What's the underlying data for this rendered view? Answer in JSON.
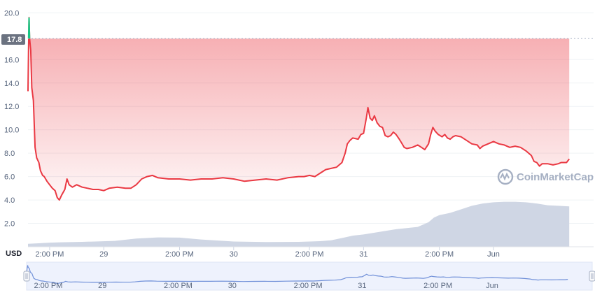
{
  "chart_data": {
    "type": "line",
    "currency_label": "USD",
    "watermark": "CoinMarketCap",
    "current_price_badge": "17.8",
    "y_ticks": [
      "2.0",
      "4.0",
      "6.0",
      "8.0",
      "10.0",
      "12.0",
      "14.0",
      "16.0",
      "20.0"
    ],
    "y_tick_values": [
      2,
      4,
      6,
      8,
      10,
      12,
      14,
      16,
      20
    ],
    "ylim": [
      0,
      20.5
    ],
    "reference_price": 17.8,
    "x_ticks": [
      "2:00 PM",
      "29",
      "2:00 PM",
      "30",
      "2:00 PM",
      "31",
      "2:00 PM",
      "Jun"
    ],
    "x_tick_hours": [
      14,
      24,
      38,
      48,
      62,
      72,
      86,
      96
    ],
    "xlim_hours": [
      10,
      114.5
    ],
    "colors": {
      "down_line": "#ea3943",
      "up_line": "#16c784",
      "down_fill_top": "#ea3943",
      "volume_fill": "#cfd6e4",
      "nav_line": "#6f8fd8",
      "nav_fill": "#eef2fd",
      "grid": "#eff2f5"
    },
    "series": [
      {
        "values": [
          [
            10.0,
            13.3
          ],
          [
            10.1,
            17.0
          ],
          [
            10.2,
            19.6
          ],
          [
            10.3,
            17.8
          ],
          [
            10.5,
            16.8
          ],
          [
            10.7,
            13.6
          ],
          [
            11.0,
            12.5
          ],
          [
            11.3,
            8.5
          ],
          [
            11.6,
            7.6
          ],
          [
            12.0,
            7.2
          ],
          [
            12.3,
            6.5
          ],
          [
            12.7,
            6.1
          ],
          [
            13.0,
            6.0
          ],
          [
            13.5,
            5.6
          ],
          [
            14.0,
            5.3
          ],
          [
            14.5,
            5.0
          ],
          [
            15.0,
            4.8
          ],
          [
            15.4,
            4.2
          ],
          [
            15.8,
            4.0
          ],
          [
            16.2,
            4.4
          ],
          [
            16.8,
            4.9
          ],
          [
            17.2,
            5.8
          ],
          [
            17.6,
            5.3
          ],
          [
            18.2,
            5.1
          ],
          [
            19.0,
            5.3
          ],
          [
            20.0,
            5.1
          ],
          [
            21.0,
            5.0
          ],
          [
            22.0,
            4.9
          ],
          [
            23.0,
            4.9
          ],
          [
            24.0,
            4.8
          ],
          [
            25.0,
            5.0
          ],
          [
            26.5,
            5.1
          ],
          [
            28.0,
            5.0
          ],
          [
            29.0,
            5.0
          ],
          [
            30.0,
            5.3
          ],
          [
            31.0,
            5.8
          ],
          [
            32.0,
            6.0
          ],
          [
            33.0,
            6.1
          ],
          [
            34.0,
            5.9
          ],
          [
            36.0,
            5.8
          ],
          [
            38.0,
            5.8
          ],
          [
            40.0,
            5.7
          ],
          [
            42.0,
            5.8
          ],
          [
            44.0,
            5.8
          ],
          [
            46.0,
            5.9
          ],
          [
            48.0,
            5.8
          ],
          [
            50.0,
            5.6
          ],
          [
            52.0,
            5.7
          ],
          [
            54.0,
            5.8
          ],
          [
            56.0,
            5.7
          ],
          [
            58.0,
            5.9
          ],
          [
            60.0,
            6.0
          ],
          [
            61.0,
            6.0
          ],
          [
            62.0,
            6.1
          ],
          [
            63.0,
            6.0
          ],
          [
            64.0,
            6.3
          ],
          [
            65.0,
            6.6
          ],
          [
            66.0,
            6.7
          ],
          [
            67.0,
            6.8
          ],
          [
            68.0,
            7.2
          ],
          [
            68.6,
            8.0
          ],
          [
            69.0,
            8.8
          ],
          [
            69.5,
            9.1
          ],
          [
            70.0,
            9.3
          ],
          [
            71.0,
            9.2
          ],
          [
            71.5,
            9.6
          ],
          [
            72.0,
            9.7
          ],
          [
            72.5,
            11.0
          ],
          [
            72.8,
            11.9
          ],
          [
            73.2,
            11.0
          ],
          [
            73.6,
            10.8
          ],
          [
            74.0,
            11.2
          ],
          [
            74.5,
            10.6
          ],
          [
            75.0,
            10.3
          ],
          [
            75.5,
            10.2
          ],
          [
            76.0,
            9.5
          ],
          [
            76.5,
            9.4
          ],
          [
            77.0,
            9.5
          ],
          [
            77.5,
            9.8
          ],
          [
            78.0,
            9.6
          ],
          [
            78.6,
            9.2
          ],
          [
            79.0,
            8.9
          ],
          [
            79.5,
            8.5
          ],
          [
            80.0,
            8.4
          ],
          [
            81.0,
            8.5
          ],
          [
            82.0,
            8.7
          ],
          [
            82.7,
            8.5
          ],
          [
            83.3,
            8.3
          ],
          [
            84.0,
            8.8
          ],
          [
            84.4,
            9.6
          ],
          [
            84.8,
            10.2
          ],
          [
            85.2,
            9.9
          ],
          [
            85.8,
            9.6
          ],
          [
            86.5,
            9.4
          ],
          [
            87.0,
            9.6
          ],
          [
            87.5,
            9.3
          ],
          [
            88.0,
            9.2
          ],
          [
            88.5,
            9.4
          ],
          [
            89.0,
            9.5
          ],
          [
            90.0,
            9.4
          ],
          [
            91.0,
            9.1
          ],
          [
            92.0,
            8.8
          ],
          [
            93.0,
            8.7
          ],
          [
            93.5,
            8.4
          ],
          [
            94.0,
            8.6
          ],
          [
            95.0,
            8.8
          ],
          [
            96.0,
            9.0
          ],
          [
            97.0,
            8.8
          ],
          [
            98.0,
            8.7
          ],
          [
            99.0,
            8.5
          ],
          [
            100.0,
            8.6
          ],
          [
            101.0,
            8.5
          ],
          [
            102.0,
            8.2
          ],
          [
            103.0,
            7.8
          ],
          [
            103.5,
            7.3
          ],
          [
            104.0,
            7.2
          ],
          [
            104.5,
            6.9
          ],
          [
            105.0,
            7.1
          ],
          [
            106.0,
            7.1
          ],
          [
            107.0,
            7.0
          ],
          [
            108.0,
            7.1
          ],
          [
            108.5,
            7.2
          ],
          [
            109.0,
            7.2
          ],
          [
            109.5,
            7.2
          ],
          [
            110.0,
            7.5
          ]
        ]
      }
    ],
    "volume_series": [
      [
        10,
        0.25
      ],
      [
        12,
        0.3
      ],
      [
        14,
        0.35
      ],
      [
        16,
        0.38
      ],
      [
        20,
        0.42
      ],
      [
        26,
        0.5
      ],
      [
        30,
        0.7
      ],
      [
        34,
        0.8
      ],
      [
        38,
        0.78
      ],
      [
        42,
        0.62
      ],
      [
        48,
        0.45
      ],
      [
        54,
        0.4
      ],
      [
        60,
        0.42
      ],
      [
        64,
        0.48
      ],
      [
        66,
        0.55
      ],
      [
        68,
        0.75
      ],
      [
        70,
        0.95
      ],
      [
        72,
        1.05
      ],
      [
        74,
        1.2
      ],
      [
        76,
        1.35
      ],
      [
        78,
        1.5
      ],
      [
        80,
        1.6
      ],
      [
        82,
        1.7
      ],
      [
        84,
        2.1
      ],
      [
        85,
        2.5
      ],
      [
        86,
        2.7
      ],
      [
        88,
        2.9
      ],
      [
        90,
        3.2
      ],
      [
        92,
        3.5
      ],
      [
        94,
        3.7
      ],
      [
        96,
        3.8
      ],
      [
        98,
        3.85
      ],
      [
        100,
        3.85
      ],
      [
        102,
        3.8
      ],
      [
        104,
        3.7
      ],
      [
        106,
        3.55
      ],
      [
        108,
        3.5
      ],
      [
        110,
        3.45
      ]
    ]
  }
}
